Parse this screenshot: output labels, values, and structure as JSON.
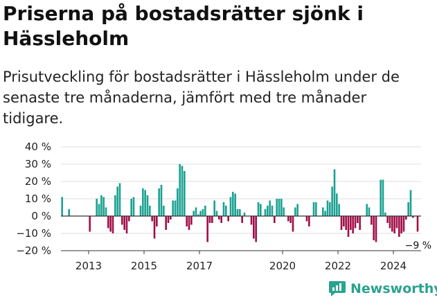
{
  "title": "Priserna på bostadsrätter sjönk i Hässleholm",
  "subtitle": "Prisutveckling för bostadsrätter i Hässleholm under de senaste tre månaderna, jämfört med tre månader tidigare.",
  "brand": {
    "name": "Newsworthy",
    "icon": "newsworthy-logo-icon"
  },
  "colors": {
    "positive": "#1aa192",
    "negative": "#a10e48",
    "grid": "#dddddd",
    "axis": "#333333"
  },
  "chart_data": {
    "type": "bar",
    "title": "",
    "xlabel": "",
    "ylabel": "",
    "ylim": [
      -20,
      40
    ],
    "yticks": [
      -20,
      -10,
      0,
      10,
      20,
      30,
      40
    ],
    "ytick_labels": [
      "−20 %",
      "−10 %",
      "0 %",
      "10 %",
      "20 %",
      "30 %",
      "40 %"
    ],
    "xticks": [
      {
        "label": "2013",
        "x": 2013.0
      },
      {
        "label": "2015",
        "x": 2015.0
      },
      {
        "label": "2017",
        "x": 2017.0
      },
      {
        "label": "2020",
        "x": 2020.0
      },
      {
        "label": "2022",
        "x": 2022.0
      },
      {
        "label": "2024",
        "x": 2024.0
      }
    ],
    "x_start": "2012-01",
    "x_end": "2025-03",
    "grid": true,
    "last_value_label": "−9 %",
    "bars": [
      {
        "x": "2012-01",
        "value": 11
      },
      {
        "x": "2012-02",
        "value": 0
      },
      {
        "x": "2012-03",
        "value": 0
      },
      {
        "x": "2012-04",
        "value": 4
      },
      {
        "x": "2012-05",
        "value": 0
      },
      {
        "x": "2012-06",
        "value": 0
      },
      {
        "x": "2012-07",
        "value": 0
      },
      {
        "x": "2012-08",
        "value": 0
      },
      {
        "x": "2012-09",
        "value": 0
      },
      {
        "x": "2012-10",
        "value": 0
      },
      {
        "x": "2012-11",
        "value": 0
      },
      {
        "x": "2012-12",
        "value": 0
      },
      {
        "x": "2013-01",
        "value": -9
      },
      {
        "x": "2013-02",
        "value": 0
      },
      {
        "x": "2013-03",
        "value": 0
      },
      {
        "x": "2013-04",
        "value": 10
      },
      {
        "x": "2013-05",
        "value": 7
      },
      {
        "x": "2013-06",
        "value": 12
      },
      {
        "x": "2013-07",
        "value": 11
      },
      {
        "x": "2013-08",
        "value": 5
      },
      {
        "x": "2013-09",
        "value": -7
      },
      {
        "x": "2013-10",
        "value": -9
      },
      {
        "x": "2013-11",
        "value": -10
      },
      {
        "x": "2013-12",
        "value": 12
      },
      {
        "x": "2014-01",
        "value": 17
      },
      {
        "x": "2014-02",
        "value": 19
      },
      {
        "x": "2014-03",
        "value": -5
      },
      {
        "x": "2014-04",
        "value": -8
      },
      {
        "x": "2014-05",
        "value": -10
      },
      {
        "x": "2014-06",
        "value": -3
      },
      {
        "x": "2014-07",
        "value": 10
      },
      {
        "x": "2014-08",
        "value": 11
      },
      {
        "x": "2014-09",
        "value": 0
      },
      {
        "x": "2014-10",
        "value": 0
      },
      {
        "x": "2014-11",
        "value": 6
      },
      {
        "x": "2014-12",
        "value": 16
      },
      {
        "x": "2015-01",
        "value": 15
      },
      {
        "x": "2015-02",
        "value": 12
      },
      {
        "x": "2015-03",
        "value": 6
      },
      {
        "x": "2015-04",
        "value": -3
      },
      {
        "x": "2015-05",
        "value": -13
      },
      {
        "x": "2015-06",
        "value": -6
      },
      {
        "x": "2015-07",
        "value": 16
      },
      {
        "x": "2015-08",
        "value": 18
      },
      {
        "x": "2015-09",
        "value": 6
      },
      {
        "x": "2015-10",
        "value": -8
      },
      {
        "x": "2015-11",
        "value": -4
      },
      {
        "x": "2015-12",
        "value": -2
      },
      {
        "x": "2016-01",
        "value": 9
      },
      {
        "x": "2016-02",
        "value": 9
      },
      {
        "x": "2016-03",
        "value": 16
      },
      {
        "x": "2016-04",
        "value": 30
      },
      {
        "x": "2016-05",
        "value": 29
      },
      {
        "x": "2016-06",
        "value": 26
      },
      {
        "x": "2016-07",
        "value": -6
      },
      {
        "x": "2016-08",
        "value": -8
      },
      {
        "x": "2016-09",
        "value": -5
      },
      {
        "x": "2016-10",
        "value": 3
      },
      {
        "x": "2016-11",
        "value": 5
      },
      {
        "x": "2016-12",
        "value": 1
      },
      {
        "x": "2017-01",
        "value": 3
      },
      {
        "x": "2017-02",
        "value": 4
      },
      {
        "x": "2017-03",
        "value": 6
      },
      {
        "x": "2017-04",
        "value": -15
      },
      {
        "x": "2017-05",
        "value": -4
      },
      {
        "x": "2017-06",
        "value": -4
      },
      {
        "x": "2017-07",
        "value": 9
      },
      {
        "x": "2017-08",
        "value": 3
      },
      {
        "x": "2017-09",
        "value": -2
      },
      {
        "x": "2017-10",
        "value": -4
      },
      {
        "x": "2017-11",
        "value": 8
      },
      {
        "x": "2017-12",
        "value": 6
      },
      {
        "x": "2018-01",
        "value": -3
      },
      {
        "x": "2018-02",
        "value": 11
      },
      {
        "x": "2018-03",
        "value": 14
      },
      {
        "x": "2018-04",
        "value": 13
      },
      {
        "x": "2018-05",
        "value": 4
      },
      {
        "x": "2018-06",
        "value": 4
      },
      {
        "x": "2018-07",
        "value": -4
      },
      {
        "x": "2018-08",
        "value": 2
      },
      {
        "x": "2018-09",
        "value": 0
      },
      {
        "x": "2018-10",
        "value": 0
      },
      {
        "x": "2018-11",
        "value": -5
      },
      {
        "x": "2018-12",
        "value": -13
      },
      {
        "x": "2019-01",
        "value": -15
      },
      {
        "x": "2019-02",
        "value": 8
      },
      {
        "x": "2019-03",
        "value": 7
      },
      {
        "x": "2019-04",
        "value": 0
      },
      {
        "x": "2019-05",
        "value": 4
      },
      {
        "x": "2019-06",
        "value": 6
      },
      {
        "x": "2019-07",
        "value": 9
      },
      {
        "x": "2019-08",
        "value": 6
      },
      {
        "x": "2019-09",
        "value": -4
      },
      {
        "x": "2019-10",
        "value": 10
      },
      {
        "x": "2019-11",
        "value": 10
      },
      {
        "x": "2019-12",
        "value": 10
      },
      {
        "x": "2020-01",
        "value": 5
      },
      {
        "x": "2020-02",
        "value": 0
      },
      {
        "x": "2020-03",
        "value": -3
      },
      {
        "x": "2020-04",
        "value": -4
      },
      {
        "x": "2020-05",
        "value": -9
      },
      {
        "x": "2020-06",
        "value": 5
      },
      {
        "x": "2020-07",
        "value": 7
      },
      {
        "x": "2020-08",
        "value": 0
      },
      {
        "x": "2020-09",
        "value": 0
      },
      {
        "x": "2020-10",
        "value": 0
      },
      {
        "x": "2020-11",
        "value": -3
      },
      {
        "x": "2020-12",
        "value": -6
      },
      {
        "x": "2021-01",
        "value": 0
      },
      {
        "x": "2021-02",
        "value": 8
      },
      {
        "x": "2021-03",
        "value": 8
      },
      {
        "x": "2021-04",
        "value": 0
      },
      {
        "x": "2021-05",
        "value": 0
      },
      {
        "x": "2021-06",
        "value": 5
      },
      {
        "x": "2021-07",
        "value": 3
      },
      {
        "x": "2021-08",
        "value": 9
      },
      {
        "x": "2021-09",
        "value": 8
      },
      {
        "x": "2021-10",
        "value": 17
      },
      {
        "x": "2021-11",
        "value": 27
      },
      {
        "x": "2021-12",
        "value": 13
      },
      {
        "x": "2022-01",
        "value": 7
      },
      {
        "x": "2022-02",
        "value": -8
      },
      {
        "x": "2022-03",
        "value": -6
      },
      {
        "x": "2022-04",
        "value": -8
      },
      {
        "x": "2022-05",
        "value": -12
      },
      {
        "x": "2022-06",
        "value": -8
      },
      {
        "x": "2022-07",
        "value": -10
      },
      {
        "x": "2022-08",
        "value": -7
      },
      {
        "x": "2022-09",
        "value": -4
      },
      {
        "x": "2022-10",
        "value": -8
      },
      {
        "x": "2022-11",
        "value": 0
      },
      {
        "x": "2022-12",
        "value": 0
      },
      {
        "x": "2023-01",
        "value": 7
      },
      {
        "x": "2023-02",
        "value": 5
      },
      {
        "x": "2023-03",
        "value": -5
      },
      {
        "x": "2023-04",
        "value": -14
      },
      {
        "x": "2023-05",
        "value": -15
      },
      {
        "x": "2023-06",
        "value": 0
      },
      {
        "x": "2023-07",
        "value": 21
      },
      {
        "x": "2023-08",
        "value": 21
      },
      {
        "x": "2023-09",
        "value": 2
      },
      {
        "x": "2023-10",
        "value": -4
      },
      {
        "x": "2023-11",
        "value": -7
      },
      {
        "x": "2023-12",
        "value": -9
      },
      {
        "x": "2024-01",
        "value": -10
      },
      {
        "x": "2024-02",
        "value": -7
      },
      {
        "x": "2024-03",
        "value": -12
      },
      {
        "x": "2024-04",
        "value": -10
      },
      {
        "x": "2024-05",
        "value": -9
      },
      {
        "x": "2024-06",
        "value": -2
      },
      {
        "x": "2024-07",
        "value": 8
      },
      {
        "x": "2024-08",
        "value": 15
      },
      {
        "x": "2024-09",
        "value": -1
      },
      {
        "x": "2024-10",
        "value": 0
      },
      {
        "x": "2024-11",
        "value": -9
      }
    ]
  }
}
